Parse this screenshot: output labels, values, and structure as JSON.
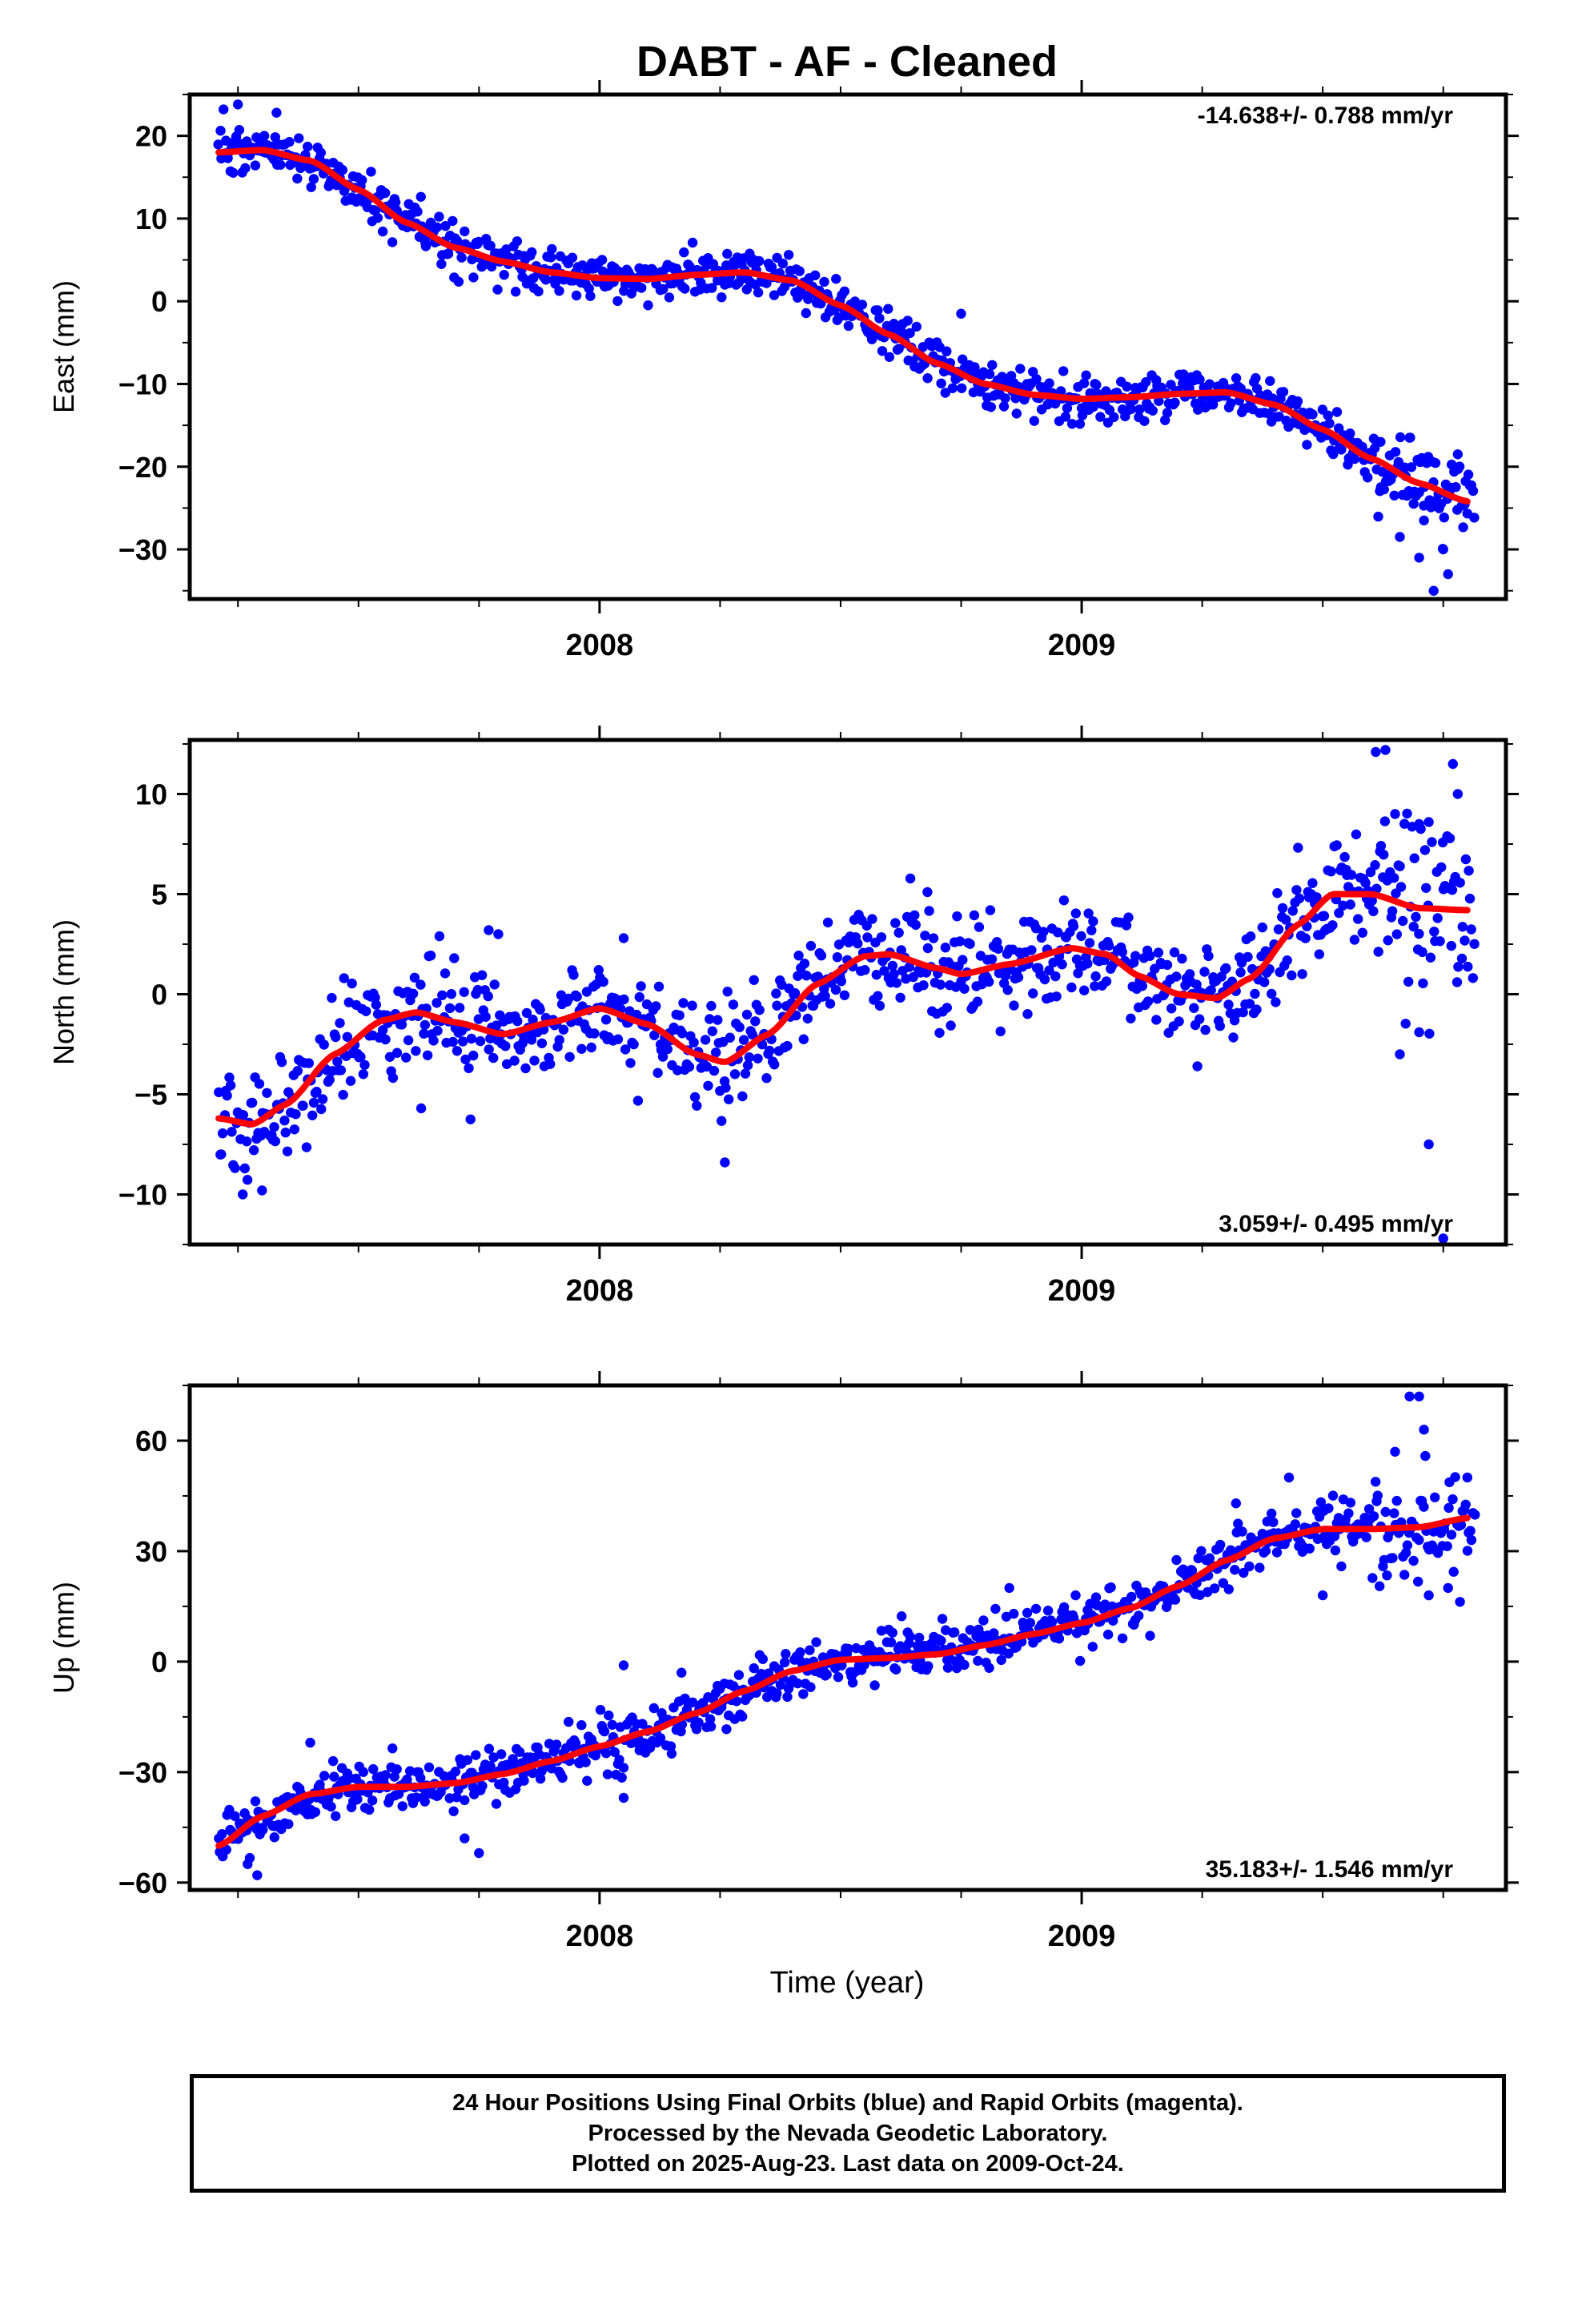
{
  "title": "DABT  - AF - Cleaned",
  "xlabel": "Time (year)",
  "colors": {
    "points": "#0000ff",
    "fit": "#ff0000",
    "axes": "#000000"
  },
  "footer": {
    "line1": "24 Hour Positions Using Final Orbits (blue) and Rapid Orbits (magenta).",
    "line2": "Processed by the Nevada Geodetic Laboratory.",
    "line3": "Plotted on 2025-Aug-23. Last data on 2009-Oct-24."
  },
  "chart_data": [
    {
      "type": "scatter",
      "component": "East",
      "ylabel": "East (mm)",
      "rate_label": "-14.638+/- 0.788 mm/yr",
      "rate_position": "top-right",
      "xlim": [
        2007.15,
        2009.88
      ],
      "ylim": [
        -36,
        25
      ],
      "yticks": [
        -30,
        -20,
        -10,
        0,
        10,
        20
      ],
      "xticks": [
        2008,
        2009
      ],
      "x_start": 2007.21,
      "x_end": 2009.815,
      "fit": [
        {
          "x": 2007.21,
          "y": 18.0
        },
        {
          "x": 2007.3,
          "y": 18.3
        },
        {
          "x": 2007.4,
          "y": 17.0
        },
        {
          "x": 2007.5,
          "y": 13.5
        },
        {
          "x": 2007.6,
          "y": 9.5
        },
        {
          "x": 2007.7,
          "y": 6.5
        },
        {
          "x": 2007.8,
          "y": 4.8
        },
        {
          "x": 2007.9,
          "y": 3.5
        },
        {
          "x": 2008.0,
          "y": 2.8
        },
        {
          "x": 2008.1,
          "y": 2.7
        },
        {
          "x": 2008.2,
          "y": 3.2
        },
        {
          "x": 2008.3,
          "y": 3.5
        },
        {
          "x": 2008.4,
          "y": 2.5
        },
        {
          "x": 2008.5,
          "y": -0.5
        },
        {
          "x": 2008.6,
          "y": -4.0
        },
        {
          "x": 2008.7,
          "y": -7.5
        },
        {
          "x": 2008.8,
          "y": -10.0
        },
        {
          "x": 2008.9,
          "y": -11.3
        },
        {
          "x": 2009.0,
          "y": -11.8
        },
        {
          "x": 2009.1,
          "y": -11.6
        },
        {
          "x": 2009.2,
          "y": -11.2
        },
        {
          "x": 2009.3,
          "y": -11.0
        },
        {
          "x": 2009.4,
          "y": -12.5
        },
        {
          "x": 2009.5,
          "y": -15.5
        },
        {
          "x": 2009.6,
          "y": -19.0
        },
        {
          "x": 2009.7,
          "y": -22.0
        },
        {
          "x": 2009.8,
          "y": -24.2
        }
      ],
      "scatter_sd": 1.4,
      "outliers": [
        {
          "x": 2009.73,
          "y": -35.0
        },
        {
          "x": 2009.76,
          "y": -33.0
        },
        {
          "x": 2009.7,
          "y": -31.0
        },
        {
          "x": 2009.66,
          "y": -28.5
        },
        {
          "x": 2009.75,
          "y": -30.0
        },
        {
          "x": 2009.78,
          "y": -18.5
        },
        {
          "x": 2009.68,
          "y": -16.5
        },
        {
          "x": 2008.75,
          "y": -1.5
        },
        {
          "x": 2007.22,
          "y": 23.2
        },
        {
          "x": 2007.25,
          "y": 23.8
        },
        {
          "x": 2007.33,
          "y": 22.8
        },
        {
          "x": 2009.55,
          "y": -16.5
        },
        {
          "x": 2009.62,
          "y": -17.0
        },
        {
          "x": 2009.71,
          "y": -26.5
        }
      ]
    },
    {
      "type": "scatter",
      "component": "North",
      "ylabel": "North (mm)",
      "rate_label": "3.059+/- 0.495 mm/yr",
      "rate_position": "bottom-right",
      "xlim": [
        2007.15,
        2009.88
      ],
      "ylim": [
        -12.5,
        12.7
      ],
      "yticks": [
        -10,
        -5,
        0,
        5,
        10
      ],
      "xticks": [
        2008,
        2009
      ],
      "x_start": 2007.21,
      "x_end": 2009.815,
      "fit": [
        {
          "x": 2007.21,
          "y": -6.2
        },
        {
          "x": 2007.28,
          "y": -6.5
        },
        {
          "x": 2007.35,
          "y": -5.5
        },
        {
          "x": 2007.45,
          "y": -3.0
        },
        {
          "x": 2007.55,
          "y": -1.3
        },
        {
          "x": 2007.62,
          "y": -0.9
        },
        {
          "x": 2007.7,
          "y": -1.4
        },
        {
          "x": 2007.8,
          "y": -2.0
        },
        {
          "x": 2007.9,
          "y": -1.4
        },
        {
          "x": 2008.0,
          "y": -0.7
        },
        {
          "x": 2008.1,
          "y": -1.5
        },
        {
          "x": 2008.2,
          "y": -3.0
        },
        {
          "x": 2008.26,
          "y": -3.4
        },
        {
          "x": 2008.35,
          "y": -2.0
        },
        {
          "x": 2008.45,
          "y": 0.5
        },
        {
          "x": 2008.55,
          "y": 1.9
        },
        {
          "x": 2008.6,
          "y": 2.0
        },
        {
          "x": 2008.7,
          "y": 1.3
        },
        {
          "x": 2008.75,
          "y": 1.0
        },
        {
          "x": 2008.85,
          "y": 1.5
        },
        {
          "x": 2008.98,
          "y": 2.3
        },
        {
          "x": 2009.05,
          "y": 2.0
        },
        {
          "x": 2009.12,
          "y": 0.9
        },
        {
          "x": 2009.2,
          "y": 0.0
        },
        {
          "x": 2009.28,
          "y": -0.2
        },
        {
          "x": 2009.35,
          "y": 0.8
        },
        {
          "x": 2009.45,
          "y": 3.5
        },
        {
          "x": 2009.52,
          "y": 5.0
        },
        {
          "x": 2009.6,
          "y": 5.0
        },
        {
          "x": 2009.7,
          "y": 4.3
        },
        {
          "x": 2009.8,
          "y": 4.2
        }
      ],
      "scatter_sd": 1.3,
      "outliers": [
        {
          "x": 2009.75,
          "y": -12.2
        },
        {
          "x": 2009.72,
          "y": -7.5
        },
        {
          "x": 2009.66,
          "y": -3.0
        },
        {
          "x": 2009.7,
          "y": -1.9
        },
        {
          "x": 2009.61,
          "y": 12.1
        },
        {
          "x": 2009.63,
          "y": 12.2
        },
        {
          "x": 2009.77,
          "y": 11.5
        },
        {
          "x": 2009.78,
          "y": 10.0
        },
        {
          "x": 2009.65,
          "y": 9.0
        },
        {
          "x": 2009.72,
          "y": 8.6
        },
        {
          "x": 2009.7,
          "y": 8.5
        },
        {
          "x": 2008.26,
          "y": -8.4
        },
        {
          "x": 2007.3,
          "y": -9.8
        },
        {
          "x": 2007.26,
          "y": -10.0
        },
        {
          "x": 2007.47,
          "y": 0.8
        },
        {
          "x": 2007.77,
          "y": 3.2
        },
        {
          "x": 2007.79,
          "y": 3.0
        },
        {
          "x": 2008.05,
          "y": 2.8
        },
        {
          "x": 2008.68,
          "y": 5.1
        },
        {
          "x": 2007.63,
          "y": -5.7
        },
        {
          "x": 2009.24,
          "y": -3.6
        }
      ]
    },
    {
      "type": "scatter",
      "component": "Up",
      "ylabel": "Up (mm)",
      "rate_label": "35.183+/- 1.546 mm/yr",
      "rate_position": "bottom-right",
      "xlim": [
        2007.15,
        2009.88
      ],
      "ylim": [
        -62,
        75
      ],
      "yticks": [
        -60,
        -30,
        0,
        30,
        60
      ],
      "xticks": [
        2008,
        2009
      ],
      "x_start": 2007.21,
      "x_end": 2009.815,
      "fit": [
        {
          "x": 2007.21,
          "y": -50.0
        },
        {
          "x": 2007.3,
          "y": -42.0
        },
        {
          "x": 2007.4,
          "y": -36.0
        },
        {
          "x": 2007.5,
          "y": -34.0
        },
        {
          "x": 2007.6,
          "y": -34.0
        },
        {
          "x": 2007.7,
          "y": -33.0
        },
        {
          "x": 2007.8,
          "y": -30.5
        },
        {
          "x": 2007.9,
          "y": -27.0
        },
        {
          "x": 2008.0,
          "y": -23.0
        },
        {
          "x": 2008.1,
          "y": -19.0
        },
        {
          "x": 2008.2,
          "y": -14.0
        },
        {
          "x": 2008.3,
          "y": -8.0
        },
        {
          "x": 2008.4,
          "y": -2.5
        },
        {
          "x": 2008.5,
          "y": 0.5
        },
        {
          "x": 2008.6,
          "y": 1.0
        },
        {
          "x": 2008.7,
          "y": 2.0
        },
        {
          "x": 2008.8,
          "y": 4.5
        },
        {
          "x": 2008.9,
          "y": 7.5
        },
        {
          "x": 2009.0,
          "y": 10.5
        },
        {
          "x": 2009.1,
          "y": 14.5
        },
        {
          "x": 2009.2,
          "y": 20.5
        },
        {
          "x": 2009.3,
          "y": 27.5
        },
        {
          "x": 2009.4,
          "y": 33.5
        },
        {
          "x": 2009.5,
          "y": 36.0
        },
        {
          "x": 2009.6,
          "y": 36.0
        },
        {
          "x": 2009.7,
          "y": 36.5
        },
        {
          "x": 2009.8,
          "y": 39.0
        }
      ],
      "scatter_sd": 3.5,
      "outliers": [
        {
          "x": 2009.68,
          "y": 72.0
        },
        {
          "x": 2009.7,
          "y": 72.0
        },
        {
          "x": 2009.71,
          "y": 63.0
        },
        {
          "x": 2009.65,
          "y": 57.0
        },
        {
          "x": 2009.8,
          "y": 50.0
        },
        {
          "x": 2009.76,
          "y": 20.0
        },
        {
          "x": 2009.72,
          "y": 18.0
        },
        {
          "x": 2009.5,
          "y": 18.0
        },
        {
          "x": 2008.05,
          "y": -37.0
        },
        {
          "x": 2008.05,
          "y": -1.0
        },
        {
          "x": 2008.17,
          "y": -3.0
        },
        {
          "x": 2007.29,
          "y": -58.0
        },
        {
          "x": 2007.27,
          "y": -55.0
        },
        {
          "x": 2007.75,
          "y": -52.0
        },
        {
          "x": 2007.72,
          "y": -48.0
        },
        {
          "x": 2007.4,
          "y": -22.0
        },
        {
          "x": 2008.85,
          "y": 20.0
        },
        {
          "x": 2009.32,
          "y": 43.0
        },
        {
          "x": 2009.43,
          "y": 50.0
        }
      ]
    }
  ]
}
